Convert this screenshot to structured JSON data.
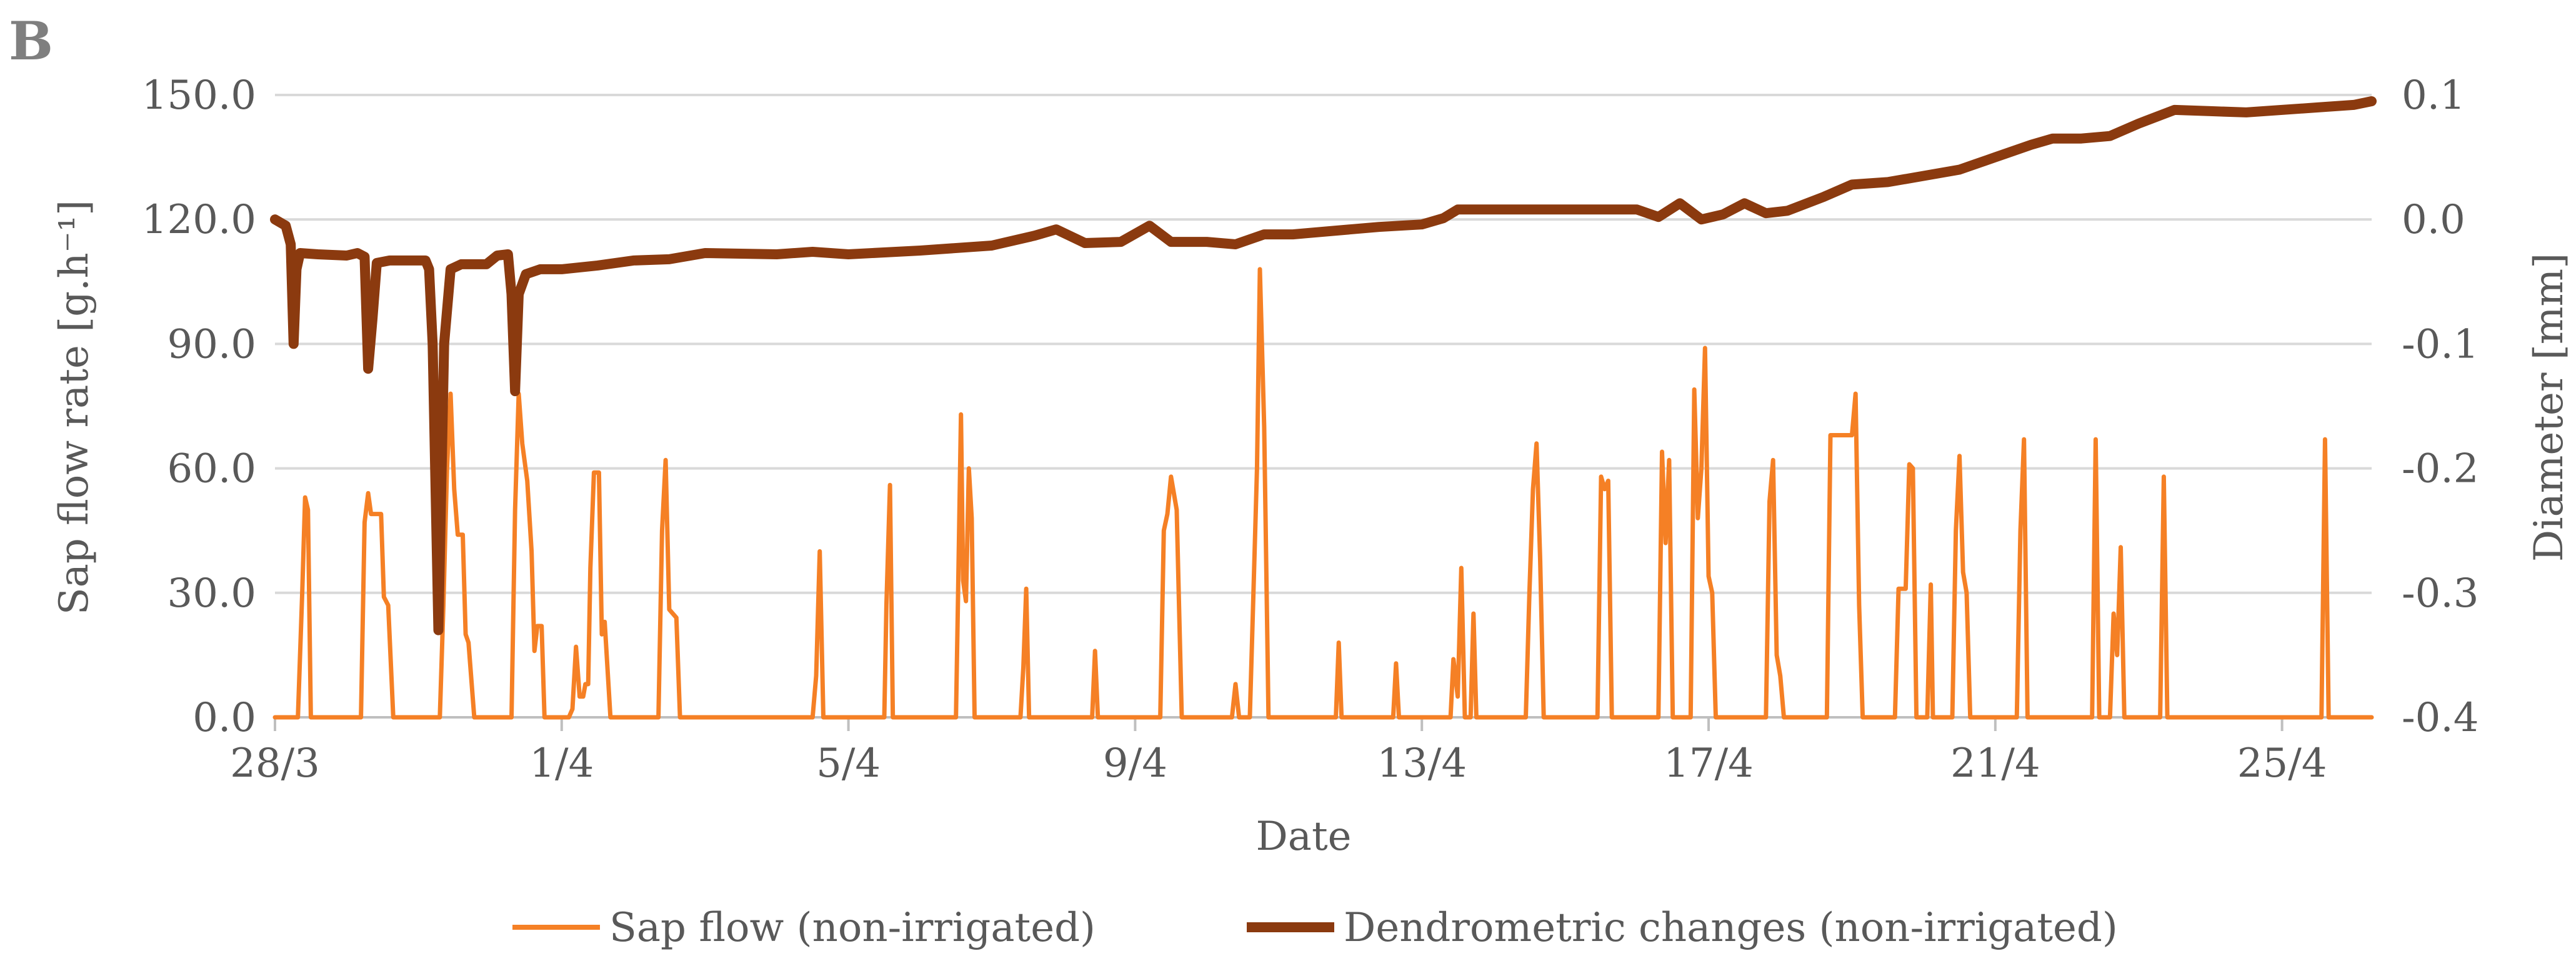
{
  "panel_label": "B",
  "chart_data": {
    "type": "line",
    "title": "",
    "xlabel": "Date",
    "ylabel_left": "Sap flow rate [g.h⁻¹]",
    "ylabel_right": "Diameter [mm]",
    "x_range_days": [
      0,
      29.25
    ],
    "x_ticks": [
      {
        "day": 0,
        "label": "28/3"
      },
      {
        "day": 4,
        "label": "1/4"
      },
      {
        "day": 8,
        "label": "5/4"
      },
      {
        "day": 12,
        "label": "9/4"
      },
      {
        "day": 16,
        "label": "13/4"
      },
      {
        "day": 20,
        "label": "17/4"
      },
      {
        "day": 24,
        "label": "21/4"
      },
      {
        "day": 28,
        "label": "25/4"
      }
    ],
    "y_left": {
      "min": 0,
      "max": 150,
      "ticks": [
        "0.0",
        "30.0",
        "60.0",
        "90.0",
        "120.0",
        "150.0"
      ]
    },
    "y_right": {
      "min": -0.4,
      "max": 0.1,
      "ticks": [
        "-0.4",
        "-0.3",
        "-0.2",
        "-0.1",
        "0.0",
        "0.1"
      ]
    },
    "grid": "horizontal",
    "legend_position": "bottom",
    "series": [
      {
        "name": "Sap flow (non-irrigated)",
        "axis": "left",
        "color": "#F58025",
        "stroke": "thin",
        "points": [
          [
            0.0,
            0
          ],
          [
            0.32,
            0
          ],
          [
            0.38,
            30
          ],
          [
            0.42,
            53
          ],
          [
            0.46,
            50
          ],
          [
            0.5,
            0
          ],
          [
            1.2,
            0
          ],
          [
            1.25,
            47
          ],
          [
            1.3,
            54
          ],
          [
            1.34,
            49
          ],
          [
            1.48,
            49
          ],
          [
            1.52,
            29
          ],
          [
            1.58,
            27
          ],
          [
            1.65,
            0
          ],
          [
            2.3,
            0
          ],
          [
            2.35,
            27
          ],
          [
            2.4,
            60
          ],
          [
            2.45,
            78
          ],
          [
            2.5,
            55
          ],
          [
            2.55,
            44
          ],
          [
            2.62,
            44
          ],
          [
            2.66,
            20
          ],
          [
            2.7,
            18
          ],
          [
            2.78,
            0
          ],
          [
            3.3,
            0
          ],
          [
            3.35,
            50
          ],
          [
            3.4,
            78
          ],
          [
            3.45,
            66
          ],
          [
            3.52,
            57
          ],
          [
            3.58,
            40
          ],
          [
            3.62,
            16
          ],
          [
            3.66,
            22
          ],
          [
            3.72,
            22
          ],
          [
            3.76,
            0
          ],
          [
            4.1,
            0
          ],
          [
            4.15,
            2
          ],
          [
            4.2,
            17
          ],
          [
            4.25,
            5
          ],
          [
            4.3,
            5
          ],
          [
            4.33,
            8
          ],
          [
            4.37,
            8
          ],
          [
            4.4,
            36
          ],
          [
            4.45,
            59
          ],
          [
            4.52,
            59
          ],
          [
            4.56,
            20
          ],
          [
            4.6,
            23
          ],
          [
            4.68,
            0
          ],
          [
            5.35,
            0
          ],
          [
            5.4,
            45
          ],
          [
            5.45,
            62
          ],
          [
            5.5,
            26
          ],
          [
            5.6,
            24
          ],
          [
            5.65,
            0
          ],
          [
            7.5,
            0
          ],
          [
            7.55,
            10
          ],
          [
            7.6,
            40
          ],
          [
            7.65,
            0
          ],
          [
            8.5,
            0
          ],
          [
            8.53,
            27
          ],
          [
            8.58,
            56
          ],
          [
            8.62,
            0
          ],
          [
            9.5,
            0
          ],
          [
            9.53,
            30
          ],
          [
            9.57,
            73
          ],
          [
            9.6,
            33
          ],
          [
            9.64,
            28
          ],
          [
            9.68,
            60
          ],
          [
            9.72,
            48
          ],
          [
            9.76,
            0
          ],
          [
            10.4,
            0
          ],
          [
            10.44,
            12
          ],
          [
            10.48,
            31
          ],
          [
            10.52,
            0
          ],
          [
            11.4,
            0
          ],
          [
            11.44,
            16
          ],
          [
            11.48,
            0
          ],
          [
            12.35,
            0
          ],
          [
            12.4,
            45
          ],
          [
            12.45,
            49
          ],
          [
            12.5,
            58
          ],
          [
            12.58,
            50
          ],
          [
            12.65,
            0
          ],
          [
            13.35,
            0
          ],
          [
            13.4,
            8
          ],
          [
            13.45,
            0
          ],
          [
            13.6,
            0
          ],
          [
            13.65,
            30
          ],
          [
            13.7,
            60
          ],
          [
            13.74,
            108
          ],
          [
            13.8,
            70
          ],
          [
            13.86,
            0
          ],
          [
            14.8,
            0
          ],
          [
            14.84,
            18
          ],
          [
            14.88,
            0
          ],
          [
            15.6,
            0
          ],
          [
            15.64,
            13
          ],
          [
            15.68,
            0
          ],
          [
            16.4,
            0
          ],
          [
            16.44,
            14
          ],
          [
            16.5,
            5
          ],
          [
            16.55,
            36
          ],
          [
            16.6,
            0
          ],
          [
            16.68,
            0
          ],
          [
            16.72,
            25
          ],
          [
            16.76,
            0
          ],
          [
            17.45,
            0
          ],
          [
            17.5,
            30
          ],
          [
            17.55,
            55
          ],
          [
            17.6,
            66
          ],
          [
            17.65,
            38
          ],
          [
            17.7,
            0
          ],
          [
            18.45,
            0
          ],
          [
            18.5,
            58
          ],
          [
            18.55,
            55
          ],
          [
            18.6,
            57
          ],
          [
            18.65,
            0
          ],
          [
            19.3,
            0
          ],
          [
            19.35,
            64
          ],
          [
            19.4,
            42
          ],
          [
            19.45,
            62
          ],
          [
            19.5,
            0
          ],
          [
            19.75,
            0
          ],
          [
            19.8,
            79
          ],
          [
            19.85,
            48
          ],
          [
            19.9,
            60
          ],
          [
            19.95,
            89
          ],
          [
            20.0,
            34
          ],
          [
            20.05,
            30
          ],
          [
            20.1,
            0
          ],
          [
            20.8,
            0
          ],
          [
            20.85,
            52
          ],
          [
            20.9,
            62
          ],
          [
            20.95,
            15
          ],
          [
            21.0,
            10
          ],
          [
            21.05,
            0
          ],
          [
            21.65,
            0
          ],
          [
            21.7,
            68
          ],
          [
            21.75,
            68
          ],
          [
            22.0,
            68
          ],
          [
            22.05,
            78
          ],
          [
            22.1,
            27
          ],
          [
            22.15,
            0
          ],
          [
            22.6,
            0
          ],
          [
            22.65,
            31
          ],
          [
            22.75,
            31
          ],
          [
            22.8,
            61
          ],
          [
            22.85,
            60
          ],
          [
            22.9,
            0
          ],
          [
            23.05,
            0
          ],
          [
            23.1,
            32
          ],
          [
            23.13,
            0
          ],
          [
            23.4,
            0
          ],
          [
            23.45,
            45
          ],
          [
            23.5,
            63
          ],
          [
            23.55,
            35
          ],
          [
            23.6,
            30
          ],
          [
            23.65,
            0
          ],
          [
            24.3,
            0
          ],
          [
            24.35,
            45
          ],
          [
            24.4,
            67
          ],
          [
            24.45,
            0
          ],
          [
            25.35,
            0
          ],
          [
            25.4,
            67
          ],
          [
            25.45,
            0
          ],
          [
            25.6,
            0
          ],
          [
            25.65,
            25
          ],
          [
            25.7,
            15
          ],
          [
            25.75,
            41
          ],
          [
            25.8,
            0
          ],
          [
            26.3,
            0
          ],
          [
            26.35,
            58
          ],
          [
            26.4,
            0
          ],
          [
            28.55,
            0
          ],
          [
            28.6,
            67
          ],
          [
            28.65,
            0
          ],
          [
            29.25,
            0
          ]
        ]
      },
      {
        "name": "Dendrometric changes (non-irrigated)",
        "axis": "right",
        "color": "#8B3A0F",
        "stroke": "thick",
        "points": [
          [
            0.0,
            0.0
          ],
          [
            0.15,
            -0.005
          ],
          [
            0.22,
            -0.02
          ],
          [
            0.26,
            -0.1
          ],
          [
            0.3,
            -0.04
          ],
          [
            0.35,
            -0.027
          ],
          [
            0.6,
            -0.028
          ],
          [
            1.0,
            -0.029
          ],
          [
            1.15,
            -0.027
          ],
          [
            1.25,
            -0.03
          ],
          [
            1.3,
            -0.12
          ],
          [
            1.36,
            -0.08
          ],
          [
            1.42,
            -0.035
          ],
          [
            1.6,
            -0.033
          ],
          [
            2.1,
            -0.033
          ],
          [
            2.15,
            -0.04
          ],
          [
            2.2,
            -0.1
          ],
          [
            2.28,
            -0.33
          ],
          [
            2.36,
            -0.1
          ],
          [
            2.45,
            -0.04
          ],
          [
            2.6,
            -0.036
          ],
          [
            2.95,
            -0.036
          ],
          [
            3.1,
            -0.029
          ],
          [
            3.25,
            -0.028
          ],
          [
            3.3,
            -0.06
          ],
          [
            3.35,
            -0.138
          ],
          [
            3.4,
            -0.06
          ],
          [
            3.5,
            -0.044
          ],
          [
            3.7,
            -0.04
          ],
          [
            4.0,
            -0.04
          ],
          [
            4.5,
            -0.037
          ],
          [
            5.0,
            -0.033
          ],
          [
            5.5,
            -0.032
          ],
          [
            6.0,
            -0.027
          ],
          [
            7.0,
            -0.028
          ],
          [
            7.5,
            -0.026
          ],
          [
            8.0,
            -0.028
          ],
          [
            9.0,
            -0.025
          ],
          [
            10.0,
            -0.021
          ],
          [
            10.6,
            -0.013
          ],
          [
            10.9,
            -0.008
          ],
          [
            11.3,
            -0.019
          ],
          [
            11.8,
            -0.018
          ],
          [
            12.2,
            -0.005
          ],
          [
            12.5,
            -0.018
          ],
          [
            13.0,
            -0.018
          ],
          [
            13.4,
            -0.02
          ],
          [
            13.8,
            -0.012
          ],
          [
            14.2,
            -0.012
          ],
          [
            14.8,
            -0.009
          ],
          [
            15.4,
            -0.006
          ],
          [
            16.0,
            -0.004
          ],
          [
            16.3,
            0.001
          ],
          [
            16.5,
            0.008
          ],
          [
            17.0,
            0.008
          ],
          [
            17.5,
            0.008
          ],
          [
            18.0,
            0.008
          ],
          [
            18.5,
            0.008
          ],
          [
            19.0,
            0.008
          ],
          [
            19.3,
            0.002
          ],
          [
            19.6,
            0.013
          ],
          [
            19.9,
            0.0
          ],
          [
            20.2,
            0.004
          ],
          [
            20.5,
            0.013
          ],
          [
            20.8,
            0.005
          ],
          [
            21.1,
            0.007
          ],
          [
            21.6,
            0.018
          ],
          [
            22.0,
            0.028
          ],
          [
            22.5,
            0.03
          ],
          [
            23.0,
            0.035
          ],
          [
            23.5,
            0.04
          ],
          [
            24.0,
            0.05
          ],
          [
            24.5,
            0.06
          ],
          [
            24.8,
            0.065
          ],
          [
            25.2,
            0.065
          ],
          [
            25.6,
            0.067
          ],
          [
            26.0,
            0.077
          ],
          [
            26.5,
            0.088
          ],
          [
            27.0,
            0.087
          ],
          [
            27.5,
            0.086
          ],
          [
            28.0,
            0.088
          ],
          [
            28.5,
            0.09
          ],
          [
            29.0,
            0.092
          ],
          [
            29.25,
            0.095
          ]
        ]
      }
    ]
  }
}
